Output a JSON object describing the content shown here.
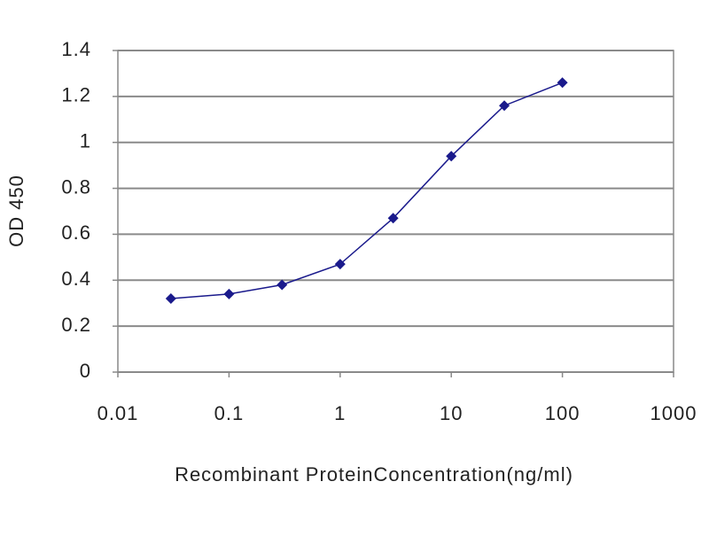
{
  "chart_data": {
    "type": "line",
    "xlabel": "Recombinant ProteinConcentration(ng/ml)",
    "ylabel": "OD 450",
    "x": [
      0.03,
      0.1,
      0.3,
      1,
      3,
      10,
      30,
      100
    ],
    "series": [
      {
        "name": "OD 450",
        "color": "#1a1a8c",
        "values": [
          0.32,
          0.34,
          0.38,
          0.47,
          0.67,
          0.94,
          1.16,
          1.26
        ]
      }
    ],
    "xlim": [
      0.01,
      1000
    ],
    "xticks": [
      0.01,
      0.1,
      1,
      10,
      100,
      1000
    ],
    "xscale": "log",
    "ylim": [
      0,
      1.4
    ],
    "yticks": [
      0,
      0.2,
      0.4,
      0.6,
      0.8,
      1,
      1.2,
      1.4
    ],
    "grid": true
  }
}
